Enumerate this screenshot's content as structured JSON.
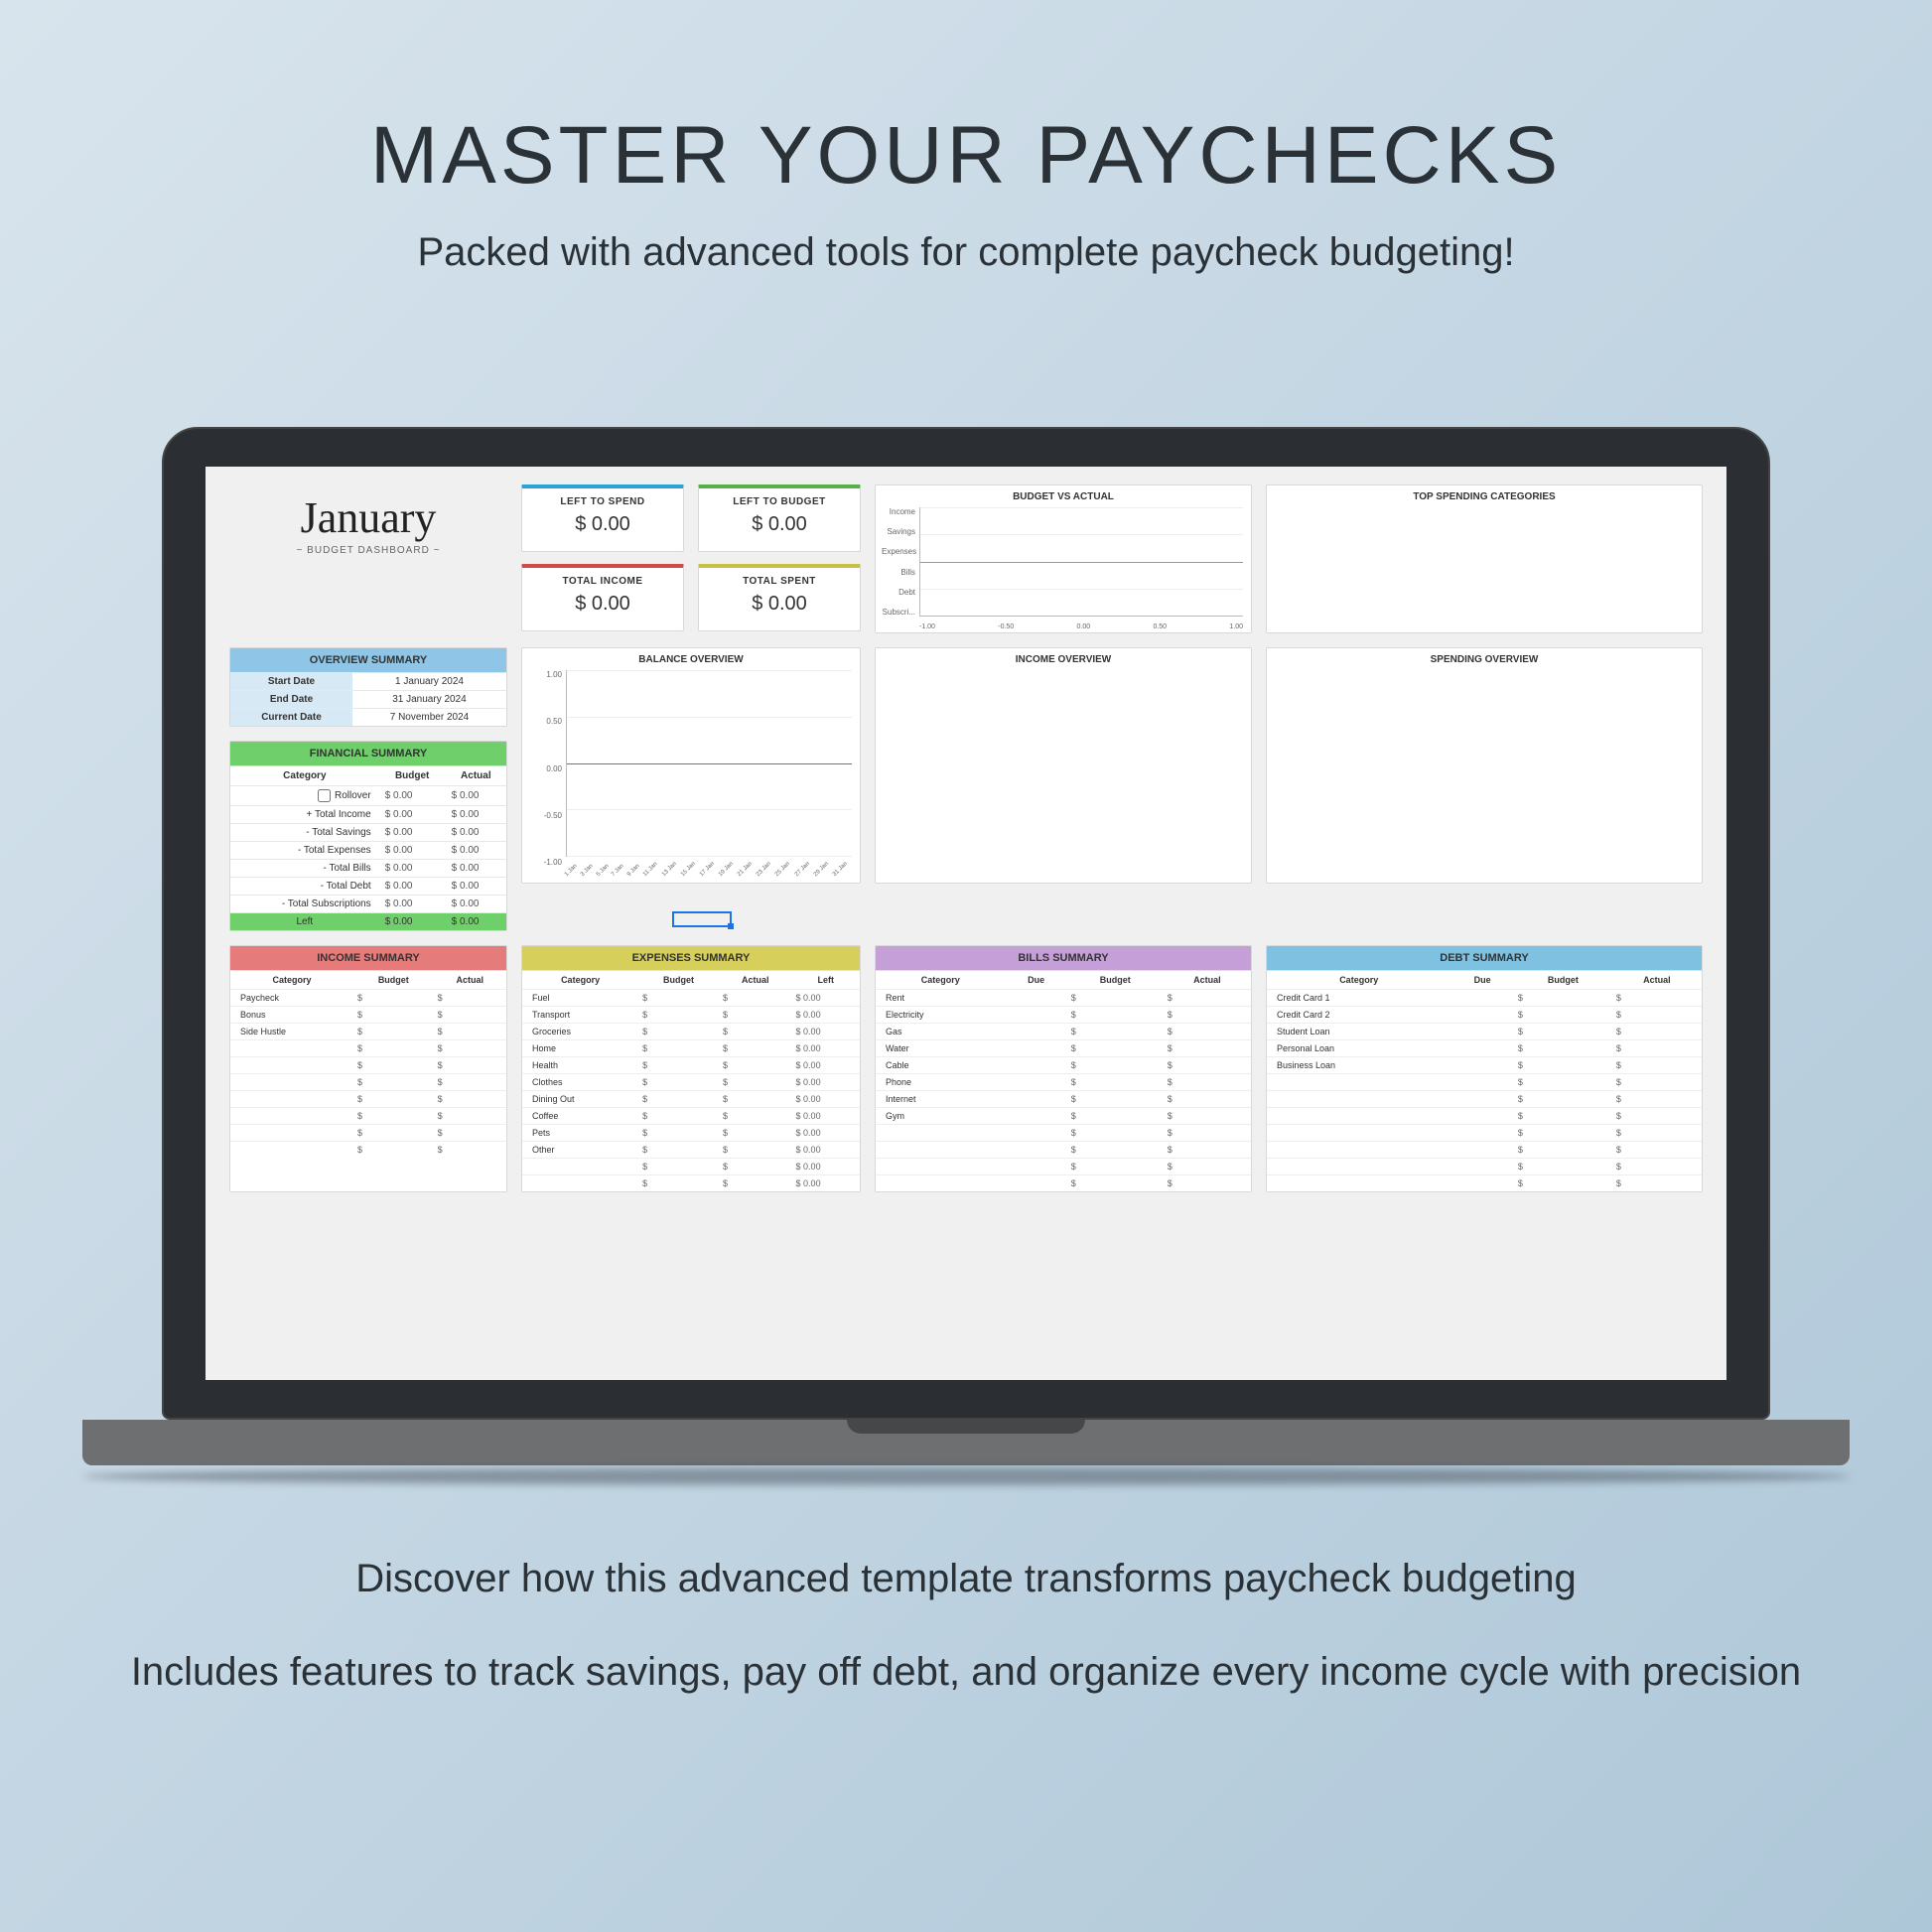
{
  "page": {
    "headline": "MASTER YOUR PAYCHECKS",
    "subhead": "Packed with advanced tools for complete paycheck budgeting!",
    "footer1": "Discover how this advanced template transforms paycheck budgeting",
    "footer2": "Includes features to track savings, pay off debt, and organize every income cycle with precision",
    "bg_gradient": [
      "#d8e4ed",
      "#aec7d8"
    ],
    "text_color": "#2a3238"
  },
  "dashboard": {
    "month": "January",
    "subtitle": "~ BUDGET DASHBOARD ~",
    "kpis": [
      {
        "label": "LEFT TO SPEND",
        "value": "$ 0.00",
        "accent": "#2da0d8"
      },
      {
        "label": "LEFT TO BUDGET",
        "value": "$ 0.00",
        "accent": "#55b04a"
      },
      {
        "label": "TOTAL INCOME",
        "value": "$ 0.00",
        "accent": "#d04a4a"
      },
      {
        "label": "TOTAL SPENT",
        "value": "$ 0.00",
        "accent": "#c8c044"
      }
    ],
    "overview": {
      "title": "OVERVIEW SUMMARY",
      "header_bg": "#8fc5e6",
      "rows": [
        [
          "Start Date",
          "1 January 2024"
        ],
        [
          "End Date",
          "31 January 2024"
        ],
        [
          "Current Date",
          "7 November 2024"
        ]
      ]
    },
    "financial": {
      "title": "FINANCIAL SUMMARY",
      "header_bg": "#6fcf6a",
      "cols": [
        "Category",
        "Budget",
        "Actual"
      ],
      "rows": [
        [
          "Rollover",
          "$   0.00",
          "$   0.00"
        ],
        [
          "+ Total Income",
          "$   0.00",
          "$   0.00"
        ],
        [
          "- Total Savings",
          "$   0.00",
          "$   0.00"
        ],
        [
          "- Total Expenses",
          "$   0.00",
          "$   0.00"
        ],
        [
          "- Total Bills",
          "$   0.00",
          "$   0.00"
        ],
        [
          "- Total Debt",
          "$   0.00",
          "$   0.00"
        ],
        [
          "- Total Subscriptions",
          "$   0.00",
          "$   0.00"
        ]
      ],
      "footer": [
        "Left",
        "$   0.00",
        "$   0.00"
      ],
      "footer_bg": "#6fcf6a"
    },
    "bva": {
      "title": "BUDGET VS ACTUAL",
      "ylabels": [
        "Income",
        "Savings",
        "Expenses",
        "Bills",
        "Debt",
        "Subscri..."
      ],
      "xlabels": [
        "-1.00",
        "-0.50",
        "0.00",
        "0.50",
        "1.00"
      ]
    },
    "top_cat": {
      "title": "TOP SPENDING CATEGORIES"
    },
    "balance": {
      "title": "BALANCE OVERVIEW",
      "ylabels": [
        "1.00",
        "0.50",
        "0.00",
        "-0.50",
        "-1.00"
      ],
      "xlabels": [
        "1 Jan",
        "3 Jan",
        "5 Jan",
        "7 Jan",
        "9 Jan",
        "11 Jan",
        "13 Jan",
        "15 Jan",
        "17 Jan",
        "19 Jan",
        "21 Jan",
        "23 Jan",
        "25 Jan",
        "27 Jan",
        "29 Jan",
        "31 Jan"
      ]
    },
    "income_ov": {
      "title": "INCOME OVERVIEW"
    },
    "spend_ov": {
      "title": "SPENDING OVERVIEW"
    },
    "summaries": {
      "income": {
        "title": "INCOME SUMMARY",
        "header_bg": "#e57b7b",
        "cols": [
          "Category",
          "Budget",
          "Actual"
        ],
        "cats": [
          "Paycheck",
          "Bonus",
          "Side Hustle",
          "",
          "",
          "",
          "",
          "",
          "",
          ""
        ]
      },
      "expenses": {
        "title": "EXPENSES SUMMARY",
        "header_bg": "#d6cf5c",
        "cols": [
          "Category",
          "Budget",
          "Actual",
          "Left"
        ],
        "cats": [
          "Fuel",
          "Transport",
          "Groceries",
          "Home",
          "Health",
          "Clothes",
          "Dining Out",
          "Coffee",
          "Pets",
          "Other",
          "",
          ""
        ]
      },
      "bills": {
        "title": "BILLS SUMMARY",
        "header_bg": "#c49fd8",
        "cols": [
          "Category",
          "Due",
          "Budget",
          "Actual"
        ],
        "cats": [
          "Rent",
          "Electricity",
          "Gas",
          "Water",
          "Cable",
          "Phone",
          "Internet",
          "Gym",
          "",
          "",
          "",
          ""
        ]
      },
      "debt": {
        "title": "DEBT SUMMARY",
        "header_bg": "#7fc1e0",
        "cols": [
          "Category",
          "Due",
          "Budget",
          "Actual"
        ],
        "cats": [
          "Credit Card 1",
          "Credit Card 2",
          "Student Loan",
          "Personal Loan",
          "Business Loan",
          "",
          "",
          "",
          "",
          "",
          "",
          ""
        ]
      }
    }
  }
}
